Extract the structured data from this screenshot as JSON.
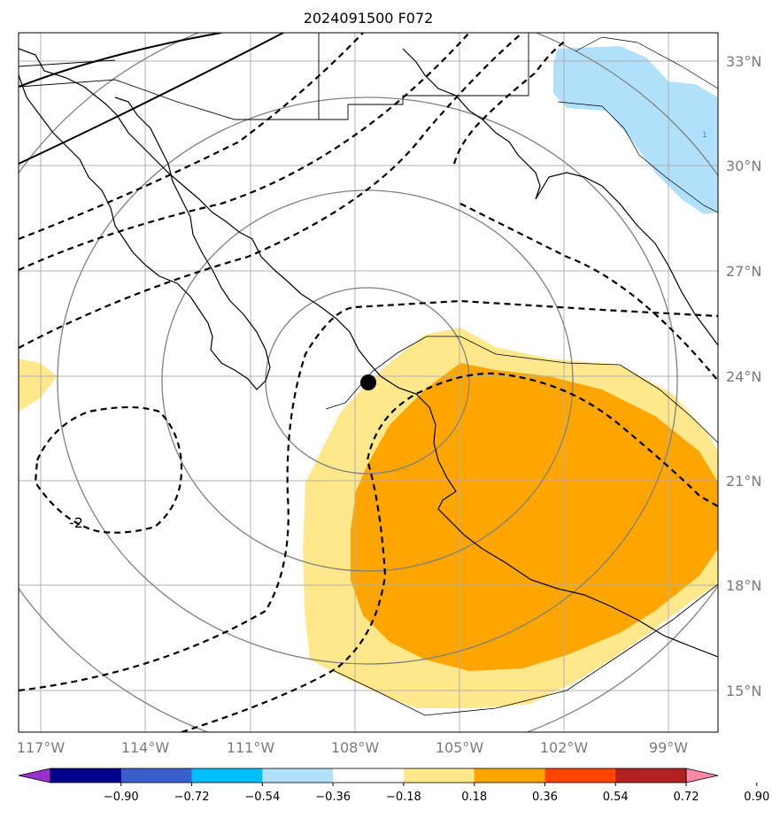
{
  "title": "2024091500 F072",
  "map": {
    "lat_ticks": [
      "33°N",
      "30°N",
      "27°N",
      "24°N",
      "21°N",
      "18°N",
      "15°N"
    ],
    "lon_ticks": [
      "117°W",
      "114°W",
      "111°W",
      "108°W",
      "105°W",
      "102°W",
      "99°W"
    ],
    "contour_labels": [
      "-2",
      "1"
    ],
    "storm_center": {
      "lon": -107.7,
      "lat": 23.8
    }
  },
  "colorbar": {
    "labels": [
      "−0.90",
      "−0.72",
      "−0.54",
      "−0.36",
      "−0.18",
      "0.18",
      "0.36",
      "0.54",
      "0.72",
      "0.90"
    ],
    "colors": [
      "#9932cc",
      "#00008b",
      "#3a5fcd",
      "#00bfff",
      "#b0e0fa",
      "#ffffff",
      "#ffe88c",
      "#ffa500",
      "#ff4500",
      "#b22222",
      "#ff88aa"
    ]
  }
}
